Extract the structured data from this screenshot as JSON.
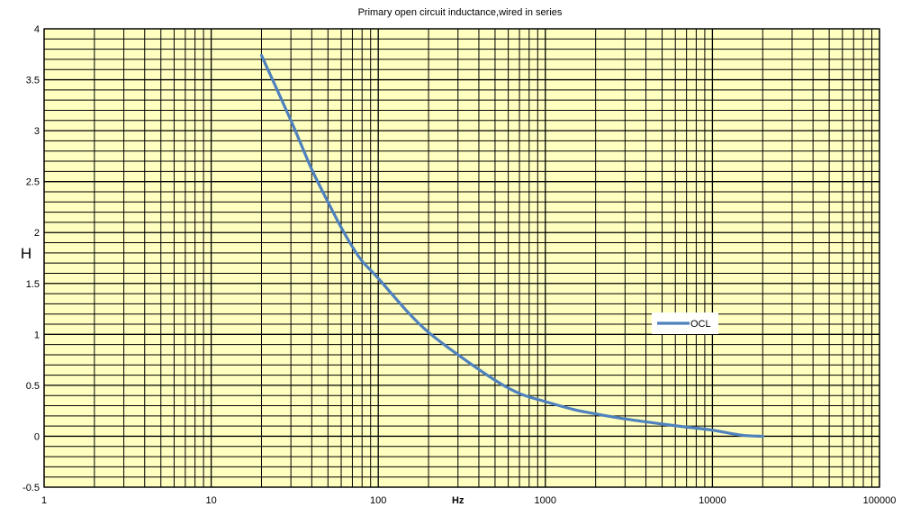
{
  "chart_data": {
    "type": "line",
    "title": "Primary open circuit  inductance,wired in series",
    "xlabel": "Hz",
    "ylabel": "H",
    "x_scale": "log",
    "xlim": [
      1,
      100000
    ],
    "ylim": [
      -0.5,
      4
    ],
    "x_ticks": [
      1,
      10,
      100,
      1000,
      10000,
      100000
    ],
    "x_tick_labels": [
      "1",
      "10",
      "100",
      "1000",
      "10000",
      "100000"
    ],
    "y_ticks": [
      -0.5,
      0,
      0.5,
      1,
      1.5,
      2,
      2.5,
      3,
      3.5,
      4
    ],
    "y_tick_labels": [
      "-0.5",
      "0",
      "0.5",
      "1",
      "1.5",
      "2",
      "2.5",
      "3",
      "3.5",
      "4"
    ],
    "y_minor_step": 0.1,
    "grid": true,
    "plot_background": "#ffffc0",
    "legend": {
      "position": "right",
      "entries": [
        "OCL"
      ]
    },
    "series": [
      {
        "name": "OCL",
        "color": "#4f81bd",
        "x": [
          20,
          30,
          40,
          50,
          60,
          70,
          80,
          100,
          150,
          200,
          300,
          500,
          700,
          1000,
          1500,
          2000,
          3000,
          5000,
          7000,
          10000,
          15000,
          20000
        ],
        "y": [
          3.74,
          3.1,
          2.62,
          2.3,
          2.05,
          1.86,
          1.72,
          1.55,
          1.22,
          1.02,
          0.8,
          0.55,
          0.42,
          0.34,
          0.26,
          0.22,
          0.17,
          0.12,
          0.09,
          0.06,
          0.01,
          0.0
        ]
      }
    ]
  }
}
